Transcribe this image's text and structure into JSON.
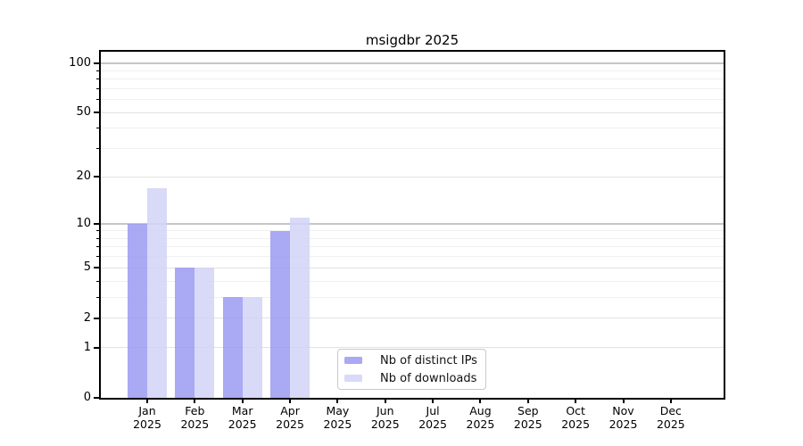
{
  "chart_data": {
    "type": "bar",
    "title": "msigdbr 2025",
    "categories": [
      "Jan",
      "Feb",
      "Mar",
      "Apr",
      "May",
      "Jun",
      "Jul",
      "Aug",
      "Sep",
      "Oct",
      "Nov",
      "Dec"
    ],
    "category_year": "2025",
    "series": [
      {
        "name": "Nb of distinct IPs",
        "color": "#a9a9f4",
        "color_rgba": "rgba(154,154,242,0.85)",
        "values": [
          10,
          5,
          3,
          9,
          0,
          0,
          0,
          0,
          0,
          0,
          0,
          0
        ]
      },
      {
        "name": "Nb of downloads",
        "color": "#d9d9f8",
        "color_rgba": "rgba(210,210,247,0.85)",
        "values": [
          17,
          5,
          3,
          11,
          0,
          0,
          0,
          0,
          0,
          0,
          0,
          0
        ]
      }
    ],
    "y_scale": "log1p",
    "ylim": [
      0,
      118
    ],
    "y_tick_labels": [
      0,
      1,
      2,
      5,
      10,
      20,
      50,
      100
    ],
    "y_minor_gridlines": [
      3,
      4,
      6,
      7,
      8,
      9,
      30,
      40,
      60,
      70,
      80,
      90
    ],
    "y_emphasized_gridlines": [
      10,
      100
    ],
    "grid": "horizontal",
    "legend_position": "lower-center-inside",
    "colors": {
      "grid_emphasized": "#c6c6c6",
      "grid_labeled": "#e2e2e2",
      "grid_minor": "#f0f0f0",
      "axis": "#000000",
      "background": "#ffffff"
    }
  }
}
